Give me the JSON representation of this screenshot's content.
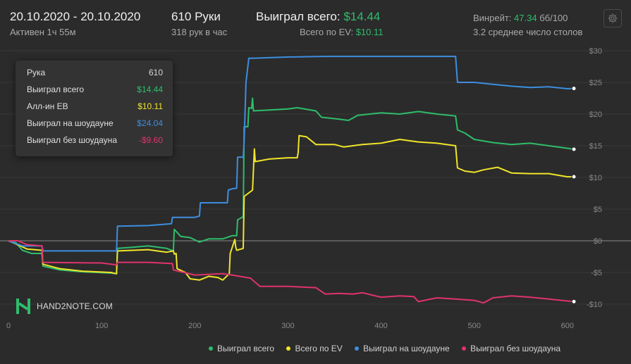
{
  "header": {
    "date_range": "20.10.2020 - 20.10.2020",
    "active": "Активен 1ч 55м",
    "hands": "610 Руки",
    "hands_per_hour": "318 рук в час",
    "won_total_label": "Выиграл всего:",
    "won_total_value": "$14.44",
    "ev_total_label": "Всего по EV:",
    "ev_total_value": "$10.11",
    "winrate_label": "Винрейт:",
    "winrate_value": "47.34",
    "winrate_unit": "бб/100",
    "tables": "3.2 среднее число столов"
  },
  "settings_icon": "gear-icon",
  "tooltip": {
    "rows": [
      {
        "label": "Рука",
        "value": "610",
        "color": "#d8d8d8"
      },
      {
        "label": "Выиграл всего",
        "value": "$14.44",
        "color": "#2ebd6b"
      },
      {
        "label": "Алл-ин EB",
        "value": "$10.11",
        "color": "#f0e52a"
      },
      {
        "label": "Выиграл на шоудауне",
        "value": "$24.04",
        "color": "#3d8ee0"
      },
      {
        "label": "Выиграл без шоудауна",
        "value": "-$9.60",
        "color": "#e0336b"
      }
    ]
  },
  "logo": {
    "icon": "hand2note-logo-icon",
    "text": "HAND2NOTE.COM"
  },
  "colors": {
    "green": "#2ebd6b",
    "yellow": "#f0e52a",
    "blue": "#3d8ee0",
    "pink": "#e0336b",
    "background": "#2b2b2b",
    "grid": "#383838",
    "zero_line": "#8a8a8a"
  },
  "chart_data": {
    "type": "line",
    "xlabel": "",
    "ylabel": "",
    "xlim": [
      0,
      610
    ],
    "ylim": [
      -11,
      30
    ],
    "x_ticks": [
      0,
      100,
      200,
      300,
      400,
      500,
      600
    ],
    "y_ticks": [
      30,
      25,
      20,
      15,
      10,
      5,
      0,
      -5,
      -10
    ],
    "y_tick_labels": [
      "$30",
      "$25",
      "$20",
      "$15",
      "$10",
      "$5",
      "$0",
      "-$5",
      "-$10"
    ],
    "grid": "horizontal",
    "legend_position": "bottom",
    "series": [
      {
        "name": "Выиграл всего",
        "color": "#2ebd6b",
        "points": [
          [
            0,
            0
          ],
          [
            8,
            -0.3
          ],
          [
            15,
            -1.5
          ],
          [
            25,
            -2
          ],
          [
            36,
            -2
          ],
          [
            37,
            -4
          ],
          [
            55,
            -4.6
          ],
          [
            80,
            -4.9
          ],
          [
            110,
            -5.1
          ],
          [
            116,
            -5.2
          ],
          [
            117,
            -1.2
          ],
          [
            135,
            -1
          ],
          [
            150,
            -0.8
          ],
          [
            170,
            -1.2
          ],
          [
            177,
            -1.6
          ],
          [
            178,
            1.8
          ],
          [
            185,
            0.7
          ],
          [
            195,
            0.5
          ],
          [
            205,
            -0.2
          ],
          [
            215,
            0.3
          ],
          [
            230,
            0.3
          ],
          [
            240,
            0.8
          ],
          [
            245,
            0.8
          ],
          [
            246,
            3.3
          ],
          [
            252,
            3.8
          ],
          [
            253,
            18
          ],
          [
            257,
            18
          ],
          [
            258,
            21
          ],
          [
            261,
            20.9
          ],
          [
            262,
            22.5
          ],
          [
            263,
            20.5
          ],
          [
            300,
            20.8
          ],
          [
            310,
            21
          ],
          [
            330,
            20.5
          ],
          [
            336,
            19.5
          ],
          [
            355,
            19.2
          ],
          [
            365,
            19
          ],
          [
            375,
            19.8
          ],
          [
            400,
            20.2
          ],
          [
            420,
            20
          ],
          [
            440,
            20.4
          ],
          [
            460,
            20
          ],
          [
            480,
            19.7
          ],
          [
            482,
            17.5
          ],
          [
            490,
            17
          ],
          [
            500,
            16
          ],
          [
            520,
            15.5
          ],
          [
            540,
            15.2
          ],
          [
            560,
            15.4
          ],
          [
            580,
            15
          ],
          [
            600,
            14.6
          ],
          [
            607,
            14.44
          ]
        ]
      },
      {
        "name": "Всего по EV",
        "color": "#f0e52a",
        "points": [
          [
            0,
            0
          ],
          [
            8,
            -0.5
          ],
          [
            20,
            -1.3
          ],
          [
            36,
            -1.5
          ],
          [
            37,
            -3.7
          ],
          [
            55,
            -4.4
          ],
          [
            80,
            -4.8
          ],
          [
            110,
            -5.0
          ],
          [
            116,
            -5.2
          ],
          [
            117,
            -1.6
          ],
          [
            150,
            -1.4
          ],
          [
            170,
            -1.8
          ],
          [
            177,
            -1.6
          ],
          [
            178,
            -2.1
          ],
          [
            180,
            -2.0
          ],
          [
            181,
            -4.4
          ],
          [
            190,
            -5.0
          ],
          [
            195,
            -6.0
          ],
          [
            205,
            -6.2
          ],
          [
            215,
            -5.6
          ],
          [
            225,
            -5.8
          ],
          [
            230,
            -6.2
          ],
          [
            237,
            -5.2
          ],
          [
            238,
            -2.0
          ],
          [
            243,
            0.2
          ],
          [
            244,
            -1.0
          ],
          [
            245,
            -1.5
          ],
          [
            252,
            -1.2
          ],
          [
            253,
            7
          ],
          [
            262,
            8
          ],
          [
            264,
            14.5
          ],
          [
            265,
            12.5
          ],
          [
            280,
            12.9
          ],
          [
            300,
            13.1
          ],
          [
            310,
            13.1
          ],
          [
            311,
            13.9
          ],
          [
            312,
            16.6
          ],
          [
            320,
            16.4
          ],
          [
            330,
            15.2
          ],
          [
            350,
            15.2
          ],
          [
            360,
            14.8
          ],
          [
            380,
            15.2
          ],
          [
            400,
            15.4
          ],
          [
            420,
            16
          ],
          [
            440,
            15.6
          ],
          [
            460,
            15.4
          ],
          [
            480,
            15
          ],
          [
            482,
            11.5
          ],
          [
            490,
            11
          ],
          [
            500,
            10.8
          ],
          [
            510,
            11.2
          ],
          [
            525,
            11.6
          ],
          [
            540,
            10.7
          ],
          [
            560,
            10.6
          ],
          [
            580,
            10.6
          ],
          [
            600,
            10.1
          ],
          [
            607,
            10.11
          ]
        ]
      },
      {
        "name": "Выиграл на шоудауне",
        "color": "#3d8ee0",
        "points": [
          [
            0,
            0
          ],
          [
            15,
            -0.8
          ],
          [
            36,
            -0.8
          ],
          [
            37,
            -1.6
          ],
          [
            116,
            -1.6
          ],
          [
            117,
            2.3
          ],
          [
            150,
            2.4
          ],
          [
            175,
            2.7
          ],
          [
            176,
            3.7
          ],
          [
            200,
            3.7
          ],
          [
            205,
            3.9
          ],
          [
            206,
            6.0
          ],
          [
            235,
            6.0
          ],
          [
            236,
            8.0
          ],
          [
            240,
            8.2
          ],
          [
            245,
            8.3
          ],
          [
            246,
            13.2
          ],
          [
            252,
            13.2
          ],
          [
            253,
            15.7
          ],
          [
            255,
            25
          ],
          [
            258,
            28.8
          ],
          [
            262,
            28.8
          ],
          [
            280,
            28.9
          ],
          [
            300,
            29.0
          ],
          [
            340,
            29.1
          ],
          [
            400,
            29.1
          ],
          [
            430,
            29.1
          ],
          [
            480,
            29.1
          ],
          [
            482,
            25
          ],
          [
            500,
            25
          ],
          [
            520,
            24.7
          ],
          [
            540,
            24.4
          ],
          [
            560,
            24.2
          ],
          [
            580,
            24.3
          ],
          [
            600,
            24
          ],
          [
            607,
            24.04
          ]
        ]
      },
      {
        "name": "Выиграл без шоудауна",
        "color": "#e0336b",
        "points": [
          [
            0,
            0
          ],
          [
            10,
            0
          ],
          [
            20,
            -0.6
          ],
          [
            36,
            -0.8
          ],
          [
            37,
            -3.4
          ],
          [
            100,
            -3.5
          ],
          [
            116,
            -3.8
          ],
          [
            117,
            -3.4
          ],
          [
            150,
            -3.4
          ],
          [
            176,
            -3.6
          ],
          [
            177,
            -4.6
          ],
          [
            200,
            -5.4
          ],
          [
            230,
            -5.2
          ],
          [
            240,
            -5.4
          ],
          [
            260,
            -5.9
          ],
          [
            262,
            -6.2
          ],
          [
            270,
            -7.2
          ],
          [
            300,
            -7.2
          ],
          [
            330,
            -7.4
          ],
          [
            340,
            -8.4
          ],
          [
            355,
            -8.3
          ],
          [
            370,
            -8.4
          ],
          [
            380,
            -8.2
          ],
          [
            400,
            -8.9
          ],
          [
            420,
            -8.7
          ],
          [
            435,
            -8.8
          ],
          [
            440,
            -9.6
          ],
          [
            460,
            -9
          ],
          [
            480,
            -9.2
          ],
          [
            500,
            -9.4
          ],
          [
            510,
            -9.8
          ],
          [
            520,
            -9.0
          ],
          [
            540,
            -8.7
          ],
          [
            560,
            -8.9
          ],
          [
            580,
            -9.2
          ],
          [
            600,
            -9.5
          ],
          [
            607,
            -9.6
          ]
        ]
      }
    ]
  }
}
